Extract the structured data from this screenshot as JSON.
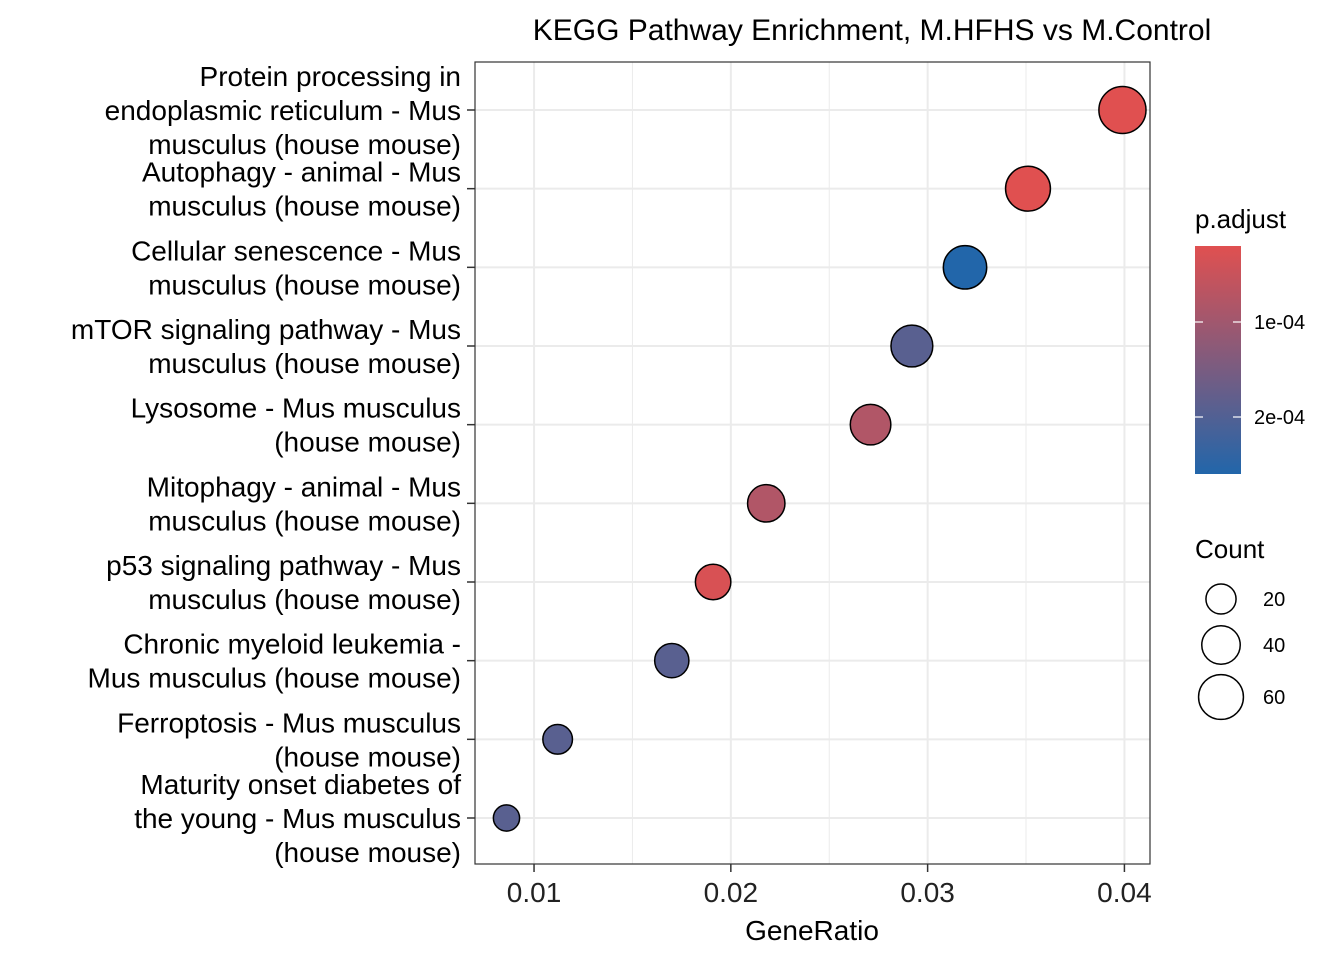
{
  "chart_data": {
    "type": "scatter",
    "title": "KEGG Pathway Enrichment, M.HFHS vs M.Control",
    "xlabel": "GeneRatio",
    "ylabel": "",
    "xlim": [
      0.007,
      0.0413
    ],
    "x_ticks": [
      0.01,
      0.02,
      0.03,
      0.04
    ],
    "x_tick_labels": [
      "0.01",
      "0.02",
      "0.03",
      "0.04"
    ],
    "grid": true,
    "categories": [
      "Protein processing in endoplasmic reticulum - Mus musculus (house mouse)",
      "Autophagy - animal - Mus musculus (house mouse)",
      "Cellular senescence - Mus musculus (house mouse)",
      "mTOR signaling pathway - Mus musculus (house mouse)",
      "Lysosome - Mus musculus (house mouse)",
      "Mitophagy - animal - Mus musculus (house mouse)",
      "p53 signaling pathway - Mus musculus (house mouse)",
      "Chronic myeloid leukemia - Mus musculus (house mouse)",
      "Ferroptosis - Mus musculus (house mouse)",
      "Maturity onset diabetes of the young - Mus musculus (house mouse)"
    ],
    "category_label_lines": [
      [
        "Protein processing in",
        "endoplasmic reticulum - Mus",
        "musculus (house mouse)"
      ],
      [
        "Autophagy - animal - Mus",
        "musculus (house mouse)"
      ],
      [
        "Cellular senescence - Mus",
        "musculus (house mouse)"
      ],
      [
        "mTOR signaling pathway - Mus",
        "musculus (house mouse)"
      ],
      [
        "Lysosome - Mus musculus",
        "(house mouse)"
      ],
      [
        "Mitophagy - animal - Mus",
        "musculus (house mouse)"
      ],
      [
        "p53 signaling pathway - Mus",
        "musculus (house mouse)"
      ],
      [
        "Chronic myeloid leukemia -",
        "Mus musculus (house mouse)"
      ],
      [
        "Ferroptosis - Mus musculus",
        "(house mouse)"
      ],
      [
        "Maturity onset diabetes of",
        "the young - Mus musculus",
        "(house mouse)"
      ]
    ],
    "points": [
      {
        "gene_ratio": 0.0399,
        "count": 68,
        "p_adjust": 2e-05
      },
      {
        "gene_ratio": 0.0351,
        "count": 60,
        "p_adjust": 2e-05
      },
      {
        "gene_ratio": 0.0319,
        "count": 55,
        "p_adjust": 0.00026
      },
      {
        "gene_ratio": 0.0292,
        "count": 50,
        "p_adjust": 0.00019
      },
      {
        "gene_ratio": 0.0271,
        "count": 46,
        "p_adjust": 8e-05
      },
      {
        "gene_ratio": 0.0218,
        "count": 37,
        "p_adjust": 8e-05
      },
      {
        "gene_ratio": 0.0191,
        "count": 32,
        "p_adjust": 3e-05
      },
      {
        "gene_ratio": 0.017,
        "count": 29,
        "p_adjust": 0.00019
      },
      {
        "gene_ratio": 0.0112,
        "count": 19,
        "p_adjust": 0.00019
      },
      {
        "gene_ratio": 0.0086,
        "count": 13,
        "p_adjust": 0.00019
      }
    ],
    "legend_color": {
      "title": "p.adjust",
      "placement": "right",
      "range": [
        2e-05,
        0.00026
      ],
      "ticks": [
        0.0001,
        0.0002
      ],
      "tick_labels": [
        "1e-04",
        "2e-04"
      ],
      "low_color": "#e05050",
      "high_color": "#2266aa",
      "reversed": true
    },
    "legend_size": {
      "title": "Count",
      "placement": "right",
      "values": [
        20,
        40,
        60
      ],
      "labels": [
        "20",
        "40",
        "60"
      ]
    }
  }
}
